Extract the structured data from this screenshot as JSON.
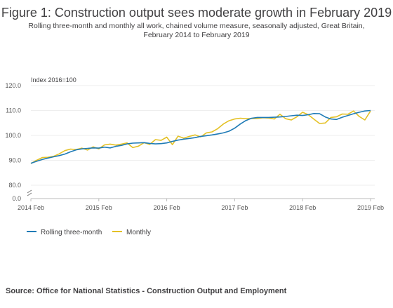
{
  "title": "Figure 1: Construction output sees moderate growth in February 2019",
  "subtitle": "Rolling three-month and monthly all work, chained volume measure, seasonally adjusted, Great Britain, February 2014 to February 2019",
  "source": "Source: Office for National Statistics - Construction Output and Employment",
  "colors": {
    "rolling": "#1f7bb6",
    "monthly": "#e4c125",
    "axis": "#bbbbbb",
    "grid": "#eeeeee"
  },
  "chart_data": {
    "type": "line",
    "ylabel": "Index 2016=100",
    "ylim": [
      80,
      120
    ],
    "yticks": [
      "0.0",
      "80.0",
      "90.0",
      "100.0",
      "110.0",
      "120.0"
    ],
    "ytick_values": [
      null,
      80,
      90,
      100,
      110,
      120
    ],
    "y_axis_break": true,
    "grid": true,
    "legend_position": "bottom-left",
    "x_tick_labels": [
      "2014 Feb",
      "2015 Feb",
      "2016 Feb",
      "2017 Feb",
      "2018 Feb",
      "2019 Feb"
    ],
    "x": [
      "2014 Feb",
      "2014 Mar",
      "2014 Apr",
      "2014 May",
      "2014 Jun",
      "2014 Jul",
      "2014 Aug",
      "2014 Sep",
      "2014 Oct",
      "2014 Nov",
      "2014 Dec",
      "2015 Jan",
      "2015 Feb",
      "2015 Mar",
      "2015 Apr",
      "2015 May",
      "2015 Jun",
      "2015 Jul",
      "2015 Aug",
      "2015 Sep",
      "2015 Oct",
      "2015 Nov",
      "2015 Dec",
      "2016 Jan",
      "2016 Feb",
      "2016 Mar",
      "2016 Apr",
      "2016 May",
      "2016 Jun",
      "2016 Jul",
      "2016 Aug",
      "2016 Sep",
      "2016 Oct",
      "2016 Nov",
      "2016 Dec",
      "2017 Jan",
      "2017 Feb",
      "2017 Mar",
      "2017 Apr",
      "2017 May",
      "2017 Jun",
      "2017 Jul",
      "2017 Aug",
      "2017 Sep",
      "2017 Oct",
      "2017 Nov",
      "2017 Dec",
      "2018 Jan",
      "2018 Feb",
      "2018 Mar",
      "2018 Apr",
      "2018 May",
      "2018 Jun",
      "2018 Jul",
      "2018 Aug",
      "2018 Sep",
      "2018 Oct",
      "2018 Nov",
      "2018 Dec",
      "2019 Jan",
      "2019 Feb"
    ],
    "series": [
      {
        "name": "Rolling three-month",
        "values": [
          88.8,
          89.6,
          90.3,
          90.9,
          91.4,
          91.9,
          92.5,
          93.4,
          94.2,
          94.6,
          94.8,
          95.0,
          94.9,
          95.3,
          95.0,
          95.6,
          96.0,
          96.6,
          96.9,
          97.0,
          97.1,
          96.8,
          96.6,
          96.7,
          97.0,
          97.6,
          98.1,
          98.5,
          98.8,
          99.1,
          99.6,
          99.9,
          100.2,
          100.6,
          101.0,
          101.7,
          102.9,
          104.6,
          106.0,
          106.9,
          107.2,
          107.2,
          107.2,
          107.3,
          107.4,
          107.6,
          107.9,
          108.1,
          108.0,
          108.3,
          108.8,
          108.7,
          107.4,
          106.6,
          106.4,
          107.3,
          108.0,
          108.7,
          109.3,
          109.8,
          110.0
        ]
      },
      {
        "name": "Monthly",
        "values": [
          88.7,
          90.0,
          91.1,
          91.2,
          91.6,
          92.6,
          93.9,
          94.5,
          94.3,
          94.9,
          94.1,
          95.4,
          94.6,
          96.2,
          96.5,
          96.1,
          96.5,
          97.0,
          95.1,
          95.7,
          97.1,
          96.4,
          98.3,
          98.0,
          99.3,
          96.3,
          99.7,
          98.9,
          99.6,
          100.2,
          99.4,
          101.0,
          101.4,
          102.7,
          104.6,
          105.9,
          106.6,
          106.9,
          106.7,
          106.8,
          106.8,
          107.1,
          107.0,
          106.6,
          108.5,
          106.7,
          106.2,
          107.5,
          109.3,
          108.3,
          106.5,
          104.8,
          105.0,
          107.2,
          107.5,
          108.6,
          108.5,
          109.8,
          107.6,
          106.2,
          109.8
        ]
      }
    ]
  }
}
